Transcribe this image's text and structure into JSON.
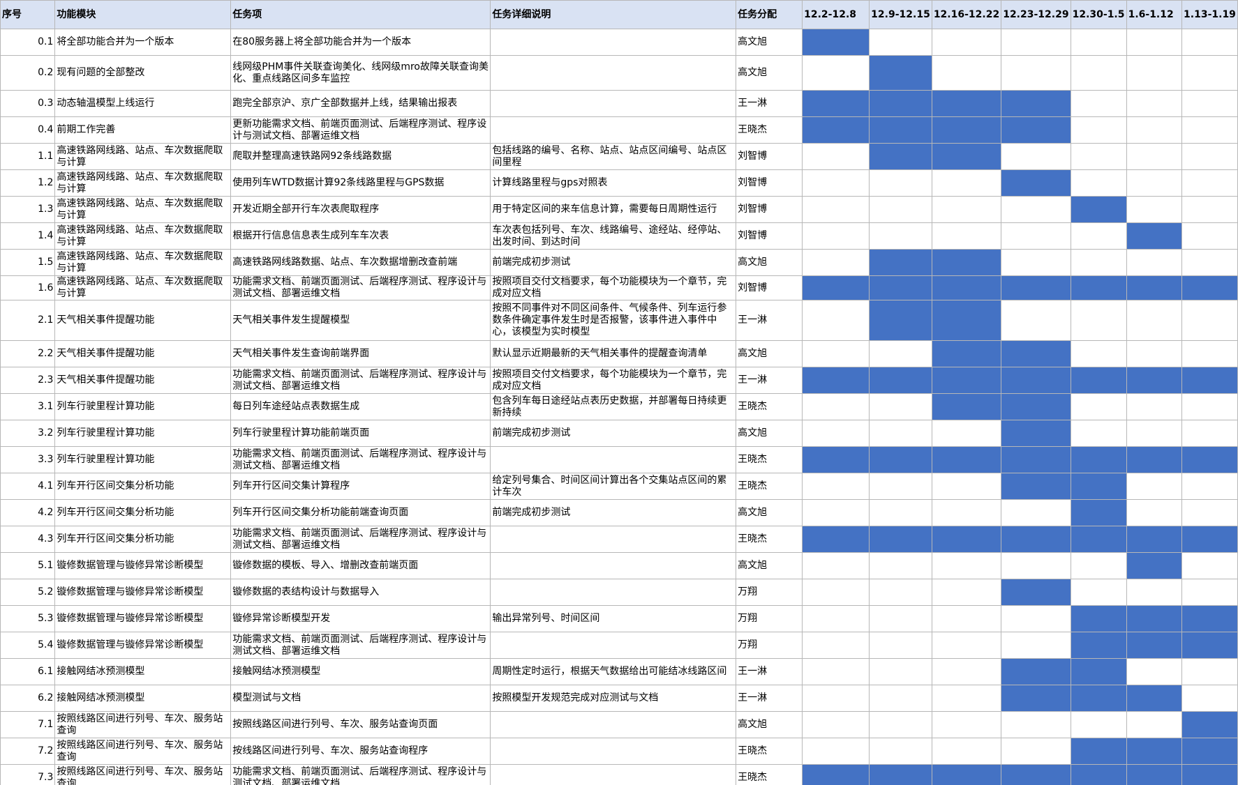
{
  "headers": [
    "序号",
    "功能模块",
    "任务项",
    "任务详细说明",
    "任务分配",
    "12.2-12.8",
    "12.9-12.15",
    "12.16-12.22",
    "12.23-12.29",
    "12.30-1.5",
    "1.6-1.12",
    "1.13-1.19"
  ],
  "highlight_color": "#4472c4",
  "header_bg": "#d9e2f3",
  "rows": [
    {
      "no": "0.1",
      "module": "将全部功能合并为一个版本",
      "task": "在80服务器上将全部功能合并为一个版本",
      "detail": "",
      "owner": "高文旭",
      "weeks": [
        1,
        0,
        0,
        0,
        0,
        0,
        0
      ]
    },
    {
      "no": "0.2",
      "module": "现有问题的全部整改",
      "task": "线网级PHM事件关联查询美化、线网级mro故障关联查询美化、重点线路区间多车监控",
      "detail": "",
      "owner": "高文旭",
      "weeks": [
        0,
        1,
        0,
        0,
        0,
        0,
        0
      ]
    },
    {
      "no": "0.3",
      "module": "动态轴温模型上线运行",
      "task": "跑完全部京沪、京广全部数据并上线，结果输出报表",
      "detail": "",
      "owner": "王一淋",
      "weeks": [
        1,
        1,
        1,
        1,
        0,
        0,
        0
      ]
    },
    {
      "no": "0.4",
      "module": "前期工作完善",
      "task": "更新功能需求文档、前端页面测试、后端程序测试、程序设计与测试文档、部署运维文档",
      "detail": "",
      "owner": "王晓杰",
      "weeks": [
        1,
        1,
        1,
        1,
        0,
        0,
        0
      ]
    },
    {
      "no": "1.1",
      "module": "高速铁路网线路、站点、车次数据爬取与计算",
      "task": "爬取并整理高速铁路网92条线路数据",
      "detail": "包括线路的编号、名称、站点、站点区间编号、站点区间里程",
      "owner": "刘智博",
      "weeks": [
        0,
        1,
        1,
        0,
        0,
        0,
        0
      ]
    },
    {
      "no": "1.2",
      "module": "高速铁路网线路、站点、车次数据爬取与计算",
      "task": "使用列车WTD数据计算92条线路里程与GPS数据",
      "detail": "计算线路里程与gps对照表",
      "owner": "刘智博",
      "weeks": [
        0,
        0,
        0,
        1,
        0,
        0,
        0
      ]
    },
    {
      "no": "1.3",
      "module": "高速铁路网线路、站点、车次数据爬取与计算",
      "task": "开发近期全部开行车次表爬取程序",
      "detail": "用于特定区间的来车信息计算，需要每日周期性运行",
      "owner": "刘智博",
      "weeks": [
        0,
        0,
        0,
        0,
        1,
        0,
        0
      ]
    },
    {
      "no": "1.4",
      "module": "高速铁路网线路、站点、车次数据爬取与计算",
      "task": "根据开行信息信息表生成列车车次表",
      "detail": "车次表包括列号、车次、线路编号、途经站、经停站、出发时间、到达时间",
      "owner": "刘智博",
      "weeks": [
        0,
        0,
        0,
        0,
        0,
        1,
        0
      ]
    },
    {
      "no": "1.5",
      "module": "高速铁路网线路、站点、车次数据爬取与计算",
      "task": "高速铁路网线路数据、站点、车次数据增删改查前端",
      "detail": "前端完成初步测试",
      "owner": "高文旭",
      "weeks": [
        0,
        1,
        1,
        0,
        0,
        0,
        0
      ]
    },
    {
      "no": "1.6",
      "module": "高速铁路网线路、站点、车次数据爬取与计算",
      "task": "功能需求文档、前端页面测试、后端程序测试、程序设计与测试文档、部署运维文档",
      "detail": "按照项目交付文档要求，每个功能模块为一个章节，完成对应文档",
      "owner": "刘智博",
      "weeks": [
        1,
        1,
        1,
        1,
        1,
        1,
        1
      ]
    },
    {
      "no": "2.1",
      "module": "天气相关事件提醒功能",
      "task": "天气相关事件发生提醒模型",
      "detail": "按照不同事件对不同区间条件、气候条件、列车运行参数条件确定事件发生时是否报警，该事件进入事件中心，该模型为实时模型",
      "owner": "王一淋",
      "weeks": [
        0,
        1,
        1,
        0,
        0,
        0,
        0
      ]
    },
    {
      "no": "2.2",
      "module": "天气相关事件提醒功能",
      "task": "天气相关事件发生查询前端界面",
      "detail": "默认显示近期最新的天气相关事件的提醒查询清单",
      "owner": "高文旭",
      "weeks": [
        0,
        0,
        1,
        1,
        0,
        0,
        0
      ]
    },
    {
      "no": "2.3",
      "module": "天气相关事件提醒功能",
      "task": "功能需求文档、前端页面测试、后端程序测试、程序设计与测试文档、部署运维文档",
      "detail": "按照项目交付文档要求，每个功能模块为一个章节，完成对应文档",
      "owner": "王一淋",
      "weeks": [
        1,
        1,
        1,
        1,
        1,
        1,
        1
      ]
    },
    {
      "no": "3.1",
      "module": "列车行驶里程计算功能",
      "task": "每日列车途经站点表数据生成",
      "detail": "包含列车每日途经站点表历史数据，并部署每日持续更新持续",
      "owner": "王晓杰",
      "weeks": [
        0,
        0,
        1,
        1,
        0,
        0,
        0
      ]
    },
    {
      "no": "3.2",
      "module": "列车行驶里程计算功能",
      "task": "列车行驶里程计算功能前端页面",
      "detail": "前端完成初步测试",
      "owner": "高文旭",
      "weeks": [
        0,
        0,
        0,
        1,
        0,
        0,
        0
      ]
    },
    {
      "no": "3.3",
      "module": "列车行驶里程计算功能",
      "task": "功能需求文档、前端页面测试、后端程序测试、程序设计与测试文档、部署运维文档",
      "detail": "",
      "owner": "王晓杰",
      "weeks": [
        1,
        1,
        1,
        1,
        1,
        1,
        1
      ]
    },
    {
      "no": "4.1",
      "module": "列车开行区间交集分析功能",
      "task": "列车开行区间交集计算程序",
      "detail": "给定列号集合、时间区间计算出各个交集站点区间的累计车次",
      "owner": "王晓杰",
      "weeks": [
        0,
        0,
        0,
        1,
        1,
        0,
        0
      ]
    },
    {
      "no": "4.2",
      "module": "列车开行区间交集分析功能",
      "task": "列车开行区间交集分析功能前端查询页面",
      "detail": "前端完成初步测试",
      "owner": "高文旭",
      "weeks": [
        0,
        0,
        0,
        0,
        1,
        0,
        0
      ]
    },
    {
      "no": "4.3",
      "module": "列车开行区间交集分析功能",
      "task": "功能需求文档、前端页面测试、后端程序测试、程序设计与测试文档、部署运维文档",
      "detail": "",
      "owner": "王晓杰",
      "weeks": [
        1,
        1,
        1,
        1,
        1,
        1,
        1
      ]
    },
    {
      "no": "5.1",
      "module": "镟修数据管理与镟修异常诊断模型",
      "task": "镟修数据的模板、导入、增删改查前端页面",
      "detail": "",
      "owner": "高文旭",
      "weeks": [
        0,
        0,
        0,
        0,
        0,
        1,
        0
      ]
    },
    {
      "no": "5.2",
      "module": "镟修数据管理与镟修异常诊断模型",
      "task": "镟修数据的表结构设计与数据导入",
      "detail": "",
      "owner": "万翔",
      "weeks": [
        0,
        0,
        0,
        1,
        0,
        0,
        0
      ]
    },
    {
      "no": "5.3",
      "module": "镟修数据管理与镟修异常诊断模型",
      "task": "镟修异常诊断模型开发",
      "detail": "输出异常列号、时间区间",
      "owner": "万翔",
      "weeks": [
        0,
        0,
        0,
        0,
        1,
        1,
        1
      ]
    },
    {
      "no": "5.4",
      "module": "镟修数据管理与镟修异常诊断模型",
      "task": "功能需求文档、前端页面测试、后端程序测试、程序设计与测试文档、部署运维文档",
      "detail": "",
      "owner": "万翔",
      "weeks": [
        0,
        0,
        0,
        0,
        1,
        1,
        1
      ]
    },
    {
      "no": "6.1",
      "module": "接触网结冰预测模型",
      "task": "接触网结冰预测模型",
      "detail": "周期性定时运行，根据天气数据给出可能结冰线路区间",
      "owner": "王一淋",
      "weeks": [
        0,
        0,
        0,
        1,
        1,
        0,
        0
      ]
    },
    {
      "no": "6.2",
      "module": "接触网结冰预测模型",
      "task": "模型测试与文档",
      "detail": "按照模型开发规范完成对应测试与文档",
      "owner": "王一淋",
      "weeks": [
        0,
        0,
        0,
        1,
        1,
        1,
        0
      ]
    },
    {
      "no": "7.1",
      "module": "按照线路区间进行列号、车次、服务站查询",
      "task": "按照线路区间进行列号、车次、服务站查询页面",
      "detail": "",
      "owner": "高文旭",
      "weeks": [
        0,
        0,
        0,
        0,
        0,
        0,
        1
      ]
    },
    {
      "no": "7.2",
      "module": "按照线路区间进行列号、车次、服务站查询",
      "task": "按线路区间进行列号、车次、服务站查询程序",
      "detail": "",
      "owner": "王晓杰",
      "weeks": [
        0,
        0,
        0,
        0,
        1,
        1,
        1
      ]
    },
    {
      "no": "7.3",
      "module": "按照线路区间进行列号、车次、服务站查询",
      "task": "功能需求文档、前端页面测试、后端程序测试、程序设计与测试文档、部署运维文档",
      "detail": "",
      "owner": "王晓杰",
      "weeks": [
        1,
        1,
        1,
        1,
        1,
        1,
        1
      ]
    }
  ]
}
